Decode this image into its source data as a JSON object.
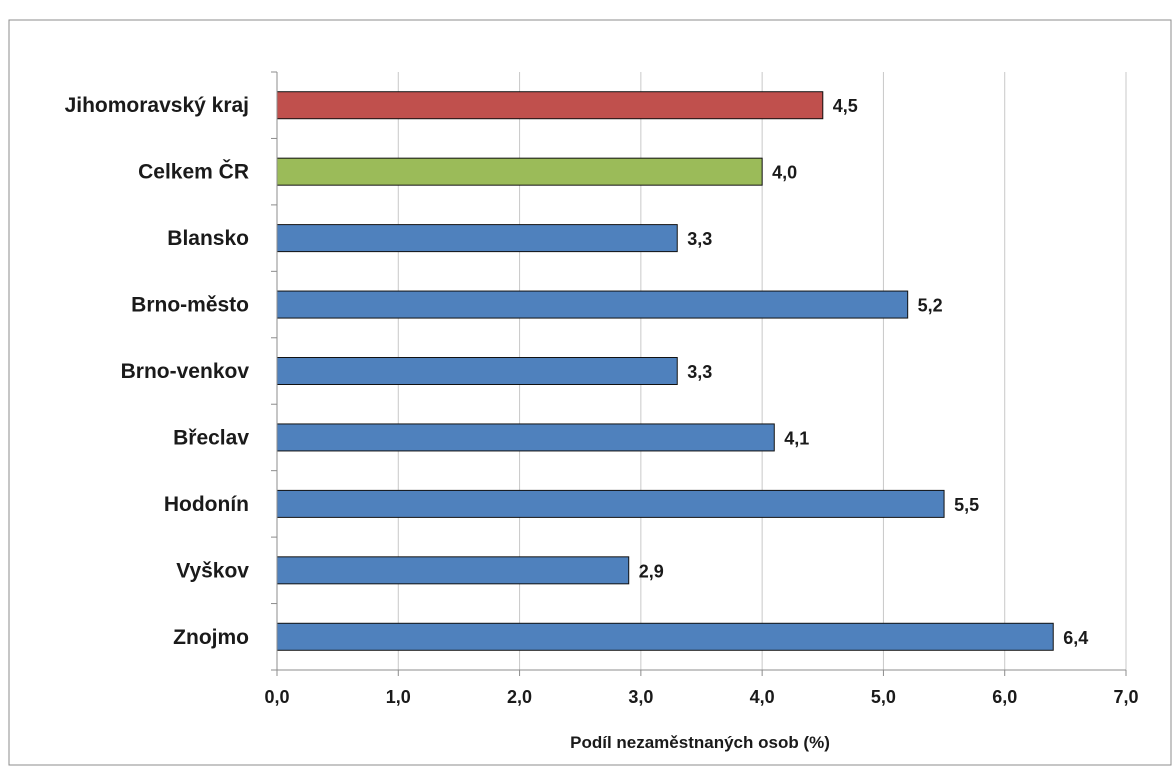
{
  "chart_data": {
    "type": "bar",
    "orientation": "horizontal",
    "title": "",
    "xlabel": "Podíl nezaměstnaných osob (%)",
    "ylabel": "",
    "categories": [
      "Jihomoravský kraj",
      "Celkem ČR",
      "Blansko",
      "Brno-město",
      "Brno-venkov",
      "Břeclav",
      "Hodonín",
      "Vyškov",
      "Znojmo"
    ],
    "values": [
      4.5,
      4.0,
      3.3,
      5.2,
      3.3,
      4.1,
      5.5,
      2.9,
      6.4
    ],
    "value_labels": [
      "4,5",
      "4,0",
      "3,3",
      "5,2",
      "3,3",
      "4,1",
      "5,5",
      "2,9",
      "6,4"
    ],
    "bar_colors": [
      "#c0504d",
      "#9bbb59",
      "#4f81bd",
      "#4f81bd",
      "#4f81bd",
      "#4f81bd",
      "#4f81bd",
      "#4f81bd",
      "#4f81bd"
    ],
    "xlim": [
      0,
      7
    ],
    "xticks": [
      0,
      1,
      2,
      3,
      4,
      5,
      6,
      7
    ],
    "xtick_labels": [
      "0,0",
      "1,0",
      "2,0",
      "3,0",
      "4,0",
      "5,0",
      "6,0",
      "7,0"
    ],
    "grid": "vertical",
    "legend": "none"
  }
}
